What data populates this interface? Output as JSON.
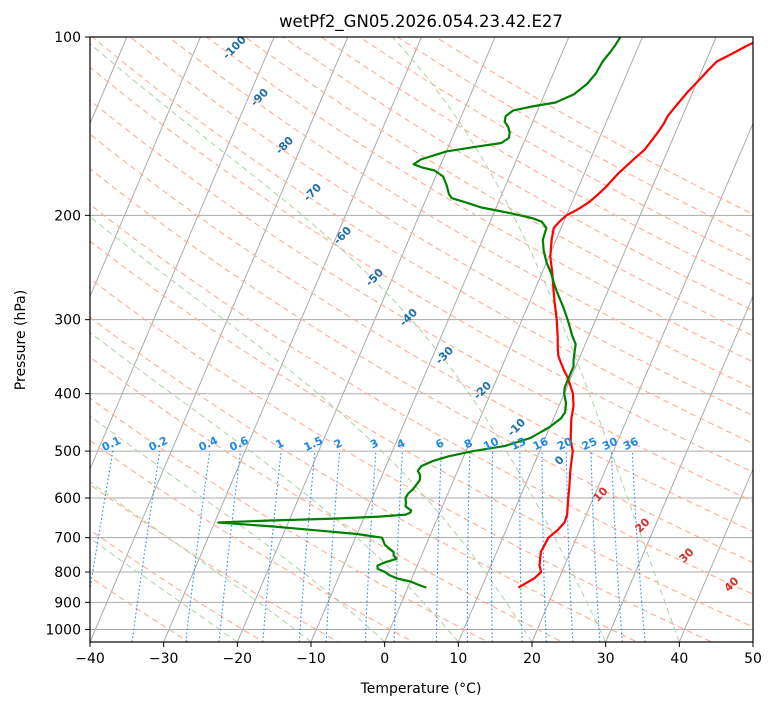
{
  "chart_data": {
    "type": "line",
    "subtype": "skew-T log-P diagram",
    "title": "wetPf2_GN05.2026.054.23.42.E27",
    "xlabel": "Temperature (°C)",
    "ylabel": "Pressure (hPa)",
    "xlim": [
      -40,
      50
    ],
    "ylim": [
      1050,
      100
    ],
    "y_scale": "log",
    "x_ticks": [
      -40,
      -30,
      -20,
      -10,
      0,
      10,
      20,
      30,
      40,
      50
    ],
    "x_tick_labels": [
      "−40",
      "−30",
      "−20",
      "−10",
      "0",
      "10",
      "20",
      "30",
      "40",
      "50"
    ],
    "y_ticks": [
      100,
      200,
      300,
      400,
      500,
      600,
      700,
      800,
      900,
      1000
    ],
    "y_tick_labels": [
      "100",
      "200",
      "300",
      "400",
      "500",
      "600",
      "700",
      "800",
      "900",
      "1000"
    ],
    "grid": true,
    "colors": {
      "temperature": "#ff0000",
      "dewpoint": "#008000",
      "isotherm": "#aaaaaa",
      "dry_adiabat": "#fcae91",
      "moist_adiabat": "#a8d5a2",
      "mixing_ratio": "#1e88e5",
      "dry_label": "#1f6fa8",
      "moist_label": "#d32f2f"
    },
    "series": [
      {
        "key": "temperature",
        "points": [
          [
            15,
            850
          ],
          [
            16.6,
            820
          ],
          [
            17.2,
            800
          ],
          [
            16.6,
            780
          ],
          [
            16.3,
            760
          ],
          [
            16,
            740
          ],
          [
            16.1,
            720
          ],
          [
            16.2,
            700
          ],
          [
            17,
            680
          ],
          [
            17.5,
            660
          ],
          [
            17.4,
            640
          ],
          [
            17,
            620
          ],
          [
            16.6,
            600
          ],
          [
            16,
            570
          ],
          [
            15.3,
            540
          ],
          [
            14.9,
            520
          ],
          [
            14.5,
            500
          ],
          [
            13.6,
            480
          ],
          [
            13,
            460
          ],
          [
            12.4,
            440
          ],
          [
            12,
            420
          ],
          [
            11.2,
            400
          ],
          [
            10.2,
            385
          ],
          [
            9.5,
            375
          ],
          [
            8.6,
            365
          ],
          [
            7.8,
            355
          ],
          [
            7,
            345
          ],
          [
            6.5,
            335
          ],
          [
            5.8,
            320
          ],
          [
            4.7,
            300
          ],
          [
            3.4,
            280
          ],
          [
            2.4,
            265
          ],
          [
            1.4,
            250
          ],
          [
            0.2,
            235
          ],
          [
            -0.6,
            220
          ],
          [
            -1,
            210
          ],
          [
            -0.6,
            205
          ],
          [
            0,
            200
          ],
          [
            1.3,
            195
          ],
          [
            2.3,
            190
          ],
          [
            3,
            185
          ],
          [
            3.6,
            180
          ],
          [
            4,
            176
          ],
          [
            4.6,
            170
          ],
          [
            5.3,
            165
          ],
          [
            6,
            160
          ],
          [
            6.8,
            155
          ],
          [
            7.2,
            150
          ],
          [
            7.6,
            145
          ],
          [
            7.9,
            140
          ],
          [
            8,
            136
          ],
          [
            8.6,
            130
          ],
          [
            9.3,
            124
          ],
          [
            10.2,
            118
          ],
          [
            10.8,
            114
          ],
          [
            11.5,
            110
          ],
          [
            13,
            107
          ],
          [
            14.4,
            104
          ],
          [
            15.5,
            102
          ],
          [
            16.8,
            100
          ]
        ]
      },
      {
        "key": "dewpoint",
        "points": [
          [
            2.5,
            850
          ],
          [
            1.2,
            840
          ],
          [
            0,
            830
          ],
          [
            -2,
            820
          ],
          [
            -3.2,
            810
          ],
          [
            -4,
            800
          ],
          [
            -5.2,
            790
          ],
          [
            -5.4,
            780
          ],
          [
            -4.5,
            770
          ],
          [
            -3.2,
            760
          ],
          [
            -3.8,
            750
          ],
          [
            -4,
            740
          ],
          [
            -5.6,
            720
          ],
          [
            -6.4,
            700
          ],
          [
            -10,
            690
          ],
          [
            -16,
            680
          ],
          [
            -22,
            670
          ],
          [
            -29.5,
            660
          ],
          [
            -23,
            655
          ],
          [
            -14,
            650
          ],
          [
            -8,
            645
          ],
          [
            -4.5,
            640
          ],
          [
            -4,
            635
          ],
          [
            -4,
            630
          ],
          [
            -5,
            620
          ],
          [
            -5.2,
            610
          ],
          [
            -5.5,
            600
          ],
          [
            -5.4,
            590
          ],
          [
            -5,
            580
          ],
          [
            -4.8,
            570
          ],
          [
            -4.6,
            560
          ],
          [
            -4.8,
            550
          ],
          [
            -5.4,
            540
          ],
          [
            -5.2,
            530
          ],
          [
            -4,
            520
          ],
          [
            -2,
            510
          ],
          [
            1,
            500
          ],
          [
            5,
            490
          ],
          [
            8,
            475
          ],
          [
            10,
            455
          ],
          [
            11,
            440
          ],
          [
            11.2,
            430
          ],
          [
            10.8,
            415
          ],
          [
            10,
            400
          ],
          [
            9.7,
            390
          ],
          [
            9.7,
            380
          ],
          [
            9.7,
            370
          ],
          [
            9.7,
            360
          ],
          [
            9.3,
            350
          ],
          [
            9,
            340
          ],
          [
            8.7,
            330
          ],
          [
            7.8,
            320
          ],
          [
            6.2,
            300
          ],
          [
            4.8,
            285
          ],
          [
            3.2,
            270
          ],
          [
            2.2,
            260
          ],
          [
            1.2,
            250
          ],
          [
            0,
            240
          ],
          [
            -1,
            230
          ],
          [
            -1.8,
            220
          ],
          [
            -2,
            210
          ],
          [
            -3,
            205
          ],
          [
            -4.6,
            202
          ],
          [
            -8,
            198
          ],
          [
            -12,
            194
          ],
          [
            -14.6,
            190
          ],
          [
            -16.6,
            187
          ],
          [
            -17.2,
            184
          ],
          [
            -18,
            178
          ],
          [
            -19,
            172
          ],
          [
            -20.5,
            168
          ],
          [
            -22.4,
            166
          ],
          [
            -23.7,
            164
          ],
          [
            -23,
            161
          ],
          [
            -20,
            156
          ],
          [
            -16,
            153
          ],
          [
            -13,
            151
          ],
          [
            -12.3,
            148
          ],
          [
            -12.5,
            145
          ],
          [
            -13,
            142
          ],
          [
            -13.8,
            139
          ],
          [
            -14,
            136
          ],
          [
            -13.3,
            133
          ],
          [
            -11,
            131
          ],
          [
            -8,
            129
          ],
          [
            -6,
            125
          ],
          [
            -4.8,
            120
          ],
          [
            -4.2,
            115
          ],
          [
            -4,
            110
          ],
          [
            -3.5,
            106
          ],
          [
            -3.2,
            103
          ],
          [
            -3,
            100
          ]
        ]
      }
    ],
    "dry_adiabat_labels": [
      "-100",
      "-90",
      "-80",
      "-70",
      "-60",
      "-50",
      "-40",
      "-30",
      "-20",
      "-10",
      "0",
      "10",
      "20",
      "30",
      "40"
    ],
    "mixing_ratio_labels": [
      "0.1",
      "0.2",
      "0.4",
      "0.6",
      "1",
      "1.5",
      "2",
      "3",
      "4",
      "6",
      "8",
      "10",
      "13",
      "16",
      "20",
      "25",
      "30",
      "36"
    ]
  }
}
